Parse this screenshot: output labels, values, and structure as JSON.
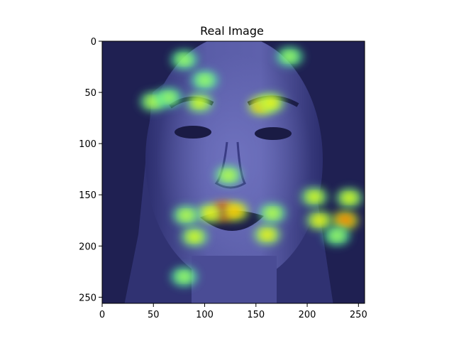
{
  "chart_data": {
    "type": "heatmap",
    "title": "Real Image",
    "xlabel": "",
    "ylabel": "",
    "xlim": [
      0,
      256
    ],
    "ylim": [
      256,
      0
    ],
    "xticks": [
      0,
      50,
      100,
      150,
      200,
      250
    ],
    "yticks": [
      0,
      50,
      100,
      150,
      200,
      250
    ],
    "grid": false,
    "colormap": "jet",
    "base_color": "#3d3f8c",
    "hotspots": [
      {
        "x": 118,
        "y": 166,
        "intensity": 1.0
      },
      {
        "x": 130,
        "y": 166,
        "intensity": 0.55
      },
      {
        "x": 105,
        "y": 168,
        "intensity": 0.45
      },
      {
        "x": 155,
        "y": 63,
        "intensity": 0.55
      },
      {
        "x": 165,
        "y": 60,
        "intensity": 0.45
      },
      {
        "x": 95,
        "y": 60,
        "intensity": 0.4
      },
      {
        "x": 50,
        "y": 59,
        "intensity": 0.35
      },
      {
        "x": 65,
        "y": 55,
        "intensity": 0.3
      },
      {
        "x": 123,
        "y": 131,
        "intensity": 0.35
      },
      {
        "x": 82,
        "y": 170,
        "intensity": 0.35
      },
      {
        "x": 90,
        "y": 191,
        "intensity": 0.4
      },
      {
        "x": 161,
        "y": 189,
        "intensity": 0.45
      },
      {
        "x": 166,
        "y": 168,
        "intensity": 0.35
      },
      {
        "x": 207,
        "y": 152,
        "intensity": 0.4
      },
      {
        "x": 212,
        "y": 175,
        "intensity": 0.45
      },
      {
        "x": 237,
        "y": 175,
        "intensity": 0.65
      },
      {
        "x": 241,
        "y": 153,
        "intensity": 0.4
      },
      {
        "x": 229,
        "y": 190,
        "intensity": 0.3
      },
      {
        "x": 80,
        "y": 18,
        "intensity": 0.3
      },
      {
        "x": 100,
        "y": 38,
        "intensity": 0.3
      },
      {
        "x": 183,
        "y": 15,
        "intensity": 0.3
      },
      {
        "x": 80,
        "y": 230,
        "intensity": 0.3
      }
    ]
  }
}
